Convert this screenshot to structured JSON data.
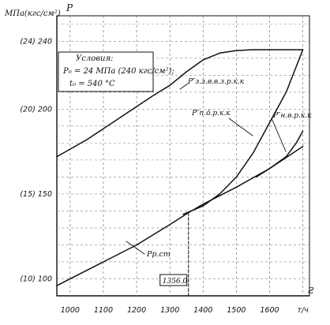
{
  "chart_data": {
    "type": "line",
    "y_unit_label": "МПа(кгс/см²)",
    "y_axis_label": "P",
    "x_axis_label": "Ƨ",
    "x_unit_label": "т/ч",
    "xlim": [
      960,
      1720
    ],
    "ylim": [
      90,
      255
    ],
    "x_ticks": [
      {
        "value": 1000,
        "label": "1000"
      },
      {
        "value": 1100,
        "label": "1100"
      },
      {
        "value": 1200,
        "label": "1200"
      },
      {
        "value": 1300,
        "label": "1300"
      },
      {
        "value": 1400,
        "label": "1400"
      },
      {
        "value": 1500,
        "label": "1500"
      },
      {
        "value": 1600,
        "label": "1600"
      },
      {
        "value": 1700,
        "label": "т/ч"
      }
    ],
    "y_ticks": [
      {
        "value": 100,
        "label": "(10) 100"
      },
      {
        "value": 150,
        "label": "(15) 150"
      },
      {
        "value": 200,
        "label": "(20) 200"
      },
      {
        "value": 240,
        "label": "(24) 240"
      }
    ],
    "conditions": {
      "title": "Условия:",
      "line1": "P₀ = 24 МПа (240 кгс/см²);",
      "line2": "t₀ = 540 °C"
    },
    "marker_label": "1356.0",
    "marker_x": 1356,
    "series": [
      {
        "name": "P″з.з.в.в.з.р.к.к",
        "x": [
          960,
          1050,
          1150,
          1250,
          1300,
          1350,
          1400,
          1450,
          1500,
          1550,
          1600,
          1650,
          1700
        ],
        "y": [
          172,
          182,
          195,
          208,
          214,
          222,
          229,
          233,
          234.5,
          235,
          235,
          235,
          235
        ]
      },
      {
        "name": "P″п.ō.р.к.к",
        "x": [
          1340,
          1400,
          1450,
          1500,
          1550,
          1600,
          1650,
          1680,
          1700
        ],
        "y": [
          138,
          143,
          150,
          160,
          174,
          192,
          210,
          225,
          235
        ]
      },
      {
        "name": "P″н.в.р.к.к",
        "x": [
          1560,
          1600,
          1650,
          1680,
          1700
        ],
        "y": [
          160,
          165,
          172,
          180,
          187
        ]
      },
      {
        "name": "Pр.ст",
        "x": [
          960,
          1100,
          1200,
          1300,
          1356,
          1400,
          1500,
          1600,
          1700
        ],
        "y": [
          96,
          110,
          120,
          132,
          139,
          144,
          154,
          165,
          178
        ]
      }
    ],
    "grid": true
  }
}
